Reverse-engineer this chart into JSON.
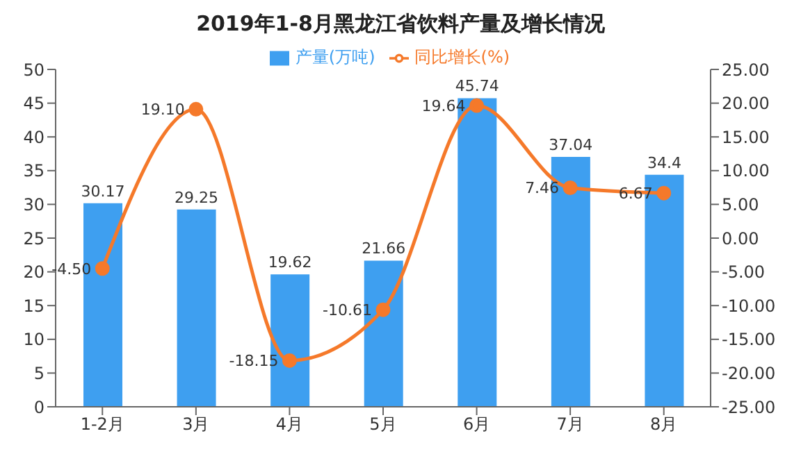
{
  "chart_data": {
    "type": "bar",
    "title": "2019年1-8月黑龙江省饮料产量及增长情况",
    "categories": [
      "1-2月",
      "3月",
      "4月",
      "5月",
      "6月",
      "7月",
      "8月"
    ],
    "series": [
      {
        "name": "产量(万吨)",
        "color": "#3e9ff0",
        "values": [
          30.17,
          29.25,
          19.62,
          21.66,
          45.74,
          37.04,
          34.4
        ],
        "value_labels": [
          "30.17",
          "29.25",
          "19.62",
          "21.66",
          "45.74",
          "37.04",
          "34.4"
        ]
      },
      {
        "name": "同比增长(%)",
        "type": "line",
        "axis": "y2",
        "color": "#f5792a",
        "values": [
          -4.5,
          19.1,
          -18.15,
          -10.61,
          19.64,
          7.46,
          6.67
        ],
        "value_labels": [
          "-4.50",
          "19.10",
          "-18.15",
          "-10.61",
          "19.64",
          "7.46",
          "6.67"
        ]
      }
    ],
    "ylim": [
      0,
      50
    ],
    "yticks": [
      0,
      5,
      10,
      15,
      20,
      25,
      30,
      35,
      40,
      45,
      50
    ],
    "y2lim": [
      -25,
      25
    ],
    "y2ticks": [
      {
        "value": -25,
        "label": "-25.00"
      },
      {
        "value": -20,
        "label": "-20.00"
      },
      {
        "value": -15,
        "label": "-15.00"
      },
      {
        "value": -10,
        "label": "-10.00"
      },
      {
        "value": -5,
        "label": "-5.00"
      },
      {
        "value": 0,
        "label": "0.00"
      },
      {
        "value": 5,
        "label": "5.00"
      },
      {
        "value": 10,
        "label": "10.00"
      },
      {
        "value": 15,
        "label": "15.00"
      },
      {
        "value": 20,
        "label": "20.00"
      },
      {
        "value": 25,
        "label": "25.00"
      }
    ],
    "legend": "top",
    "marker": "circle",
    "line_style": "solid",
    "grid": false
  }
}
